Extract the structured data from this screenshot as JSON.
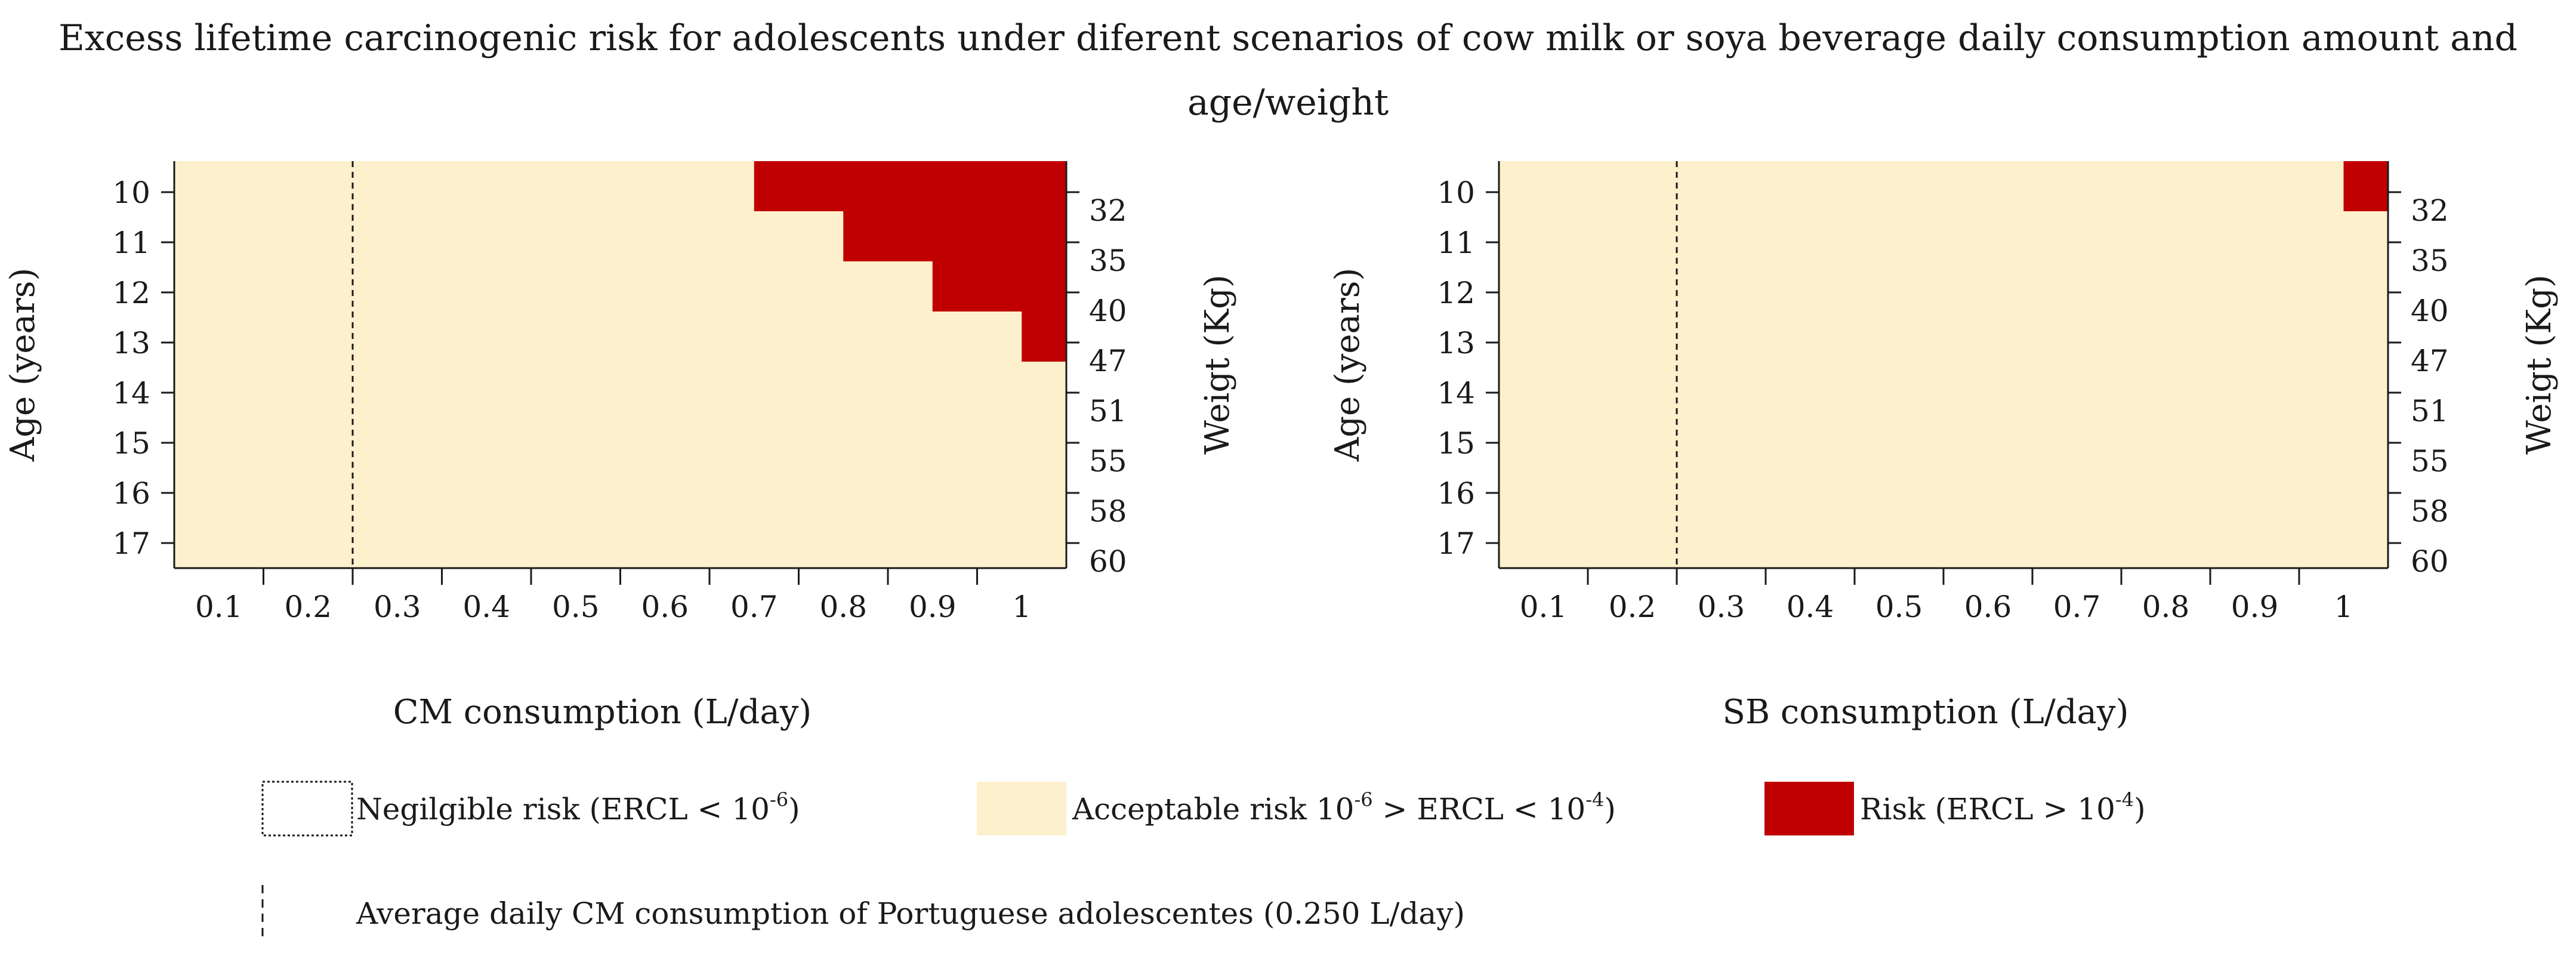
{
  "title": "Excess lifetime carcinogenic risk for adolescents under diferent scenarios of cow milk or soya beverage daily consumption amount and age/weight",
  "colors": {
    "acceptable": "#FDF0CC",
    "risk": "#C00000",
    "axis": "#1a1a1a"
  },
  "chart_data": [
    {
      "type": "heatmap",
      "xlabel": "CM consumption (L/day)",
      "ylabel": "Age (years)",
      "y2label": "Weigt (Kg)",
      "x_ticks": [
        "0.1",
        "0.2",
        "0.3",
        "0.4",
        "0.5",
        "0.6",
        "0.7",
        "0.8",
        "0.9",
        "1"
      ],
      "age_ticks": [
        "10",
        "11",
        "12",
        "13",
        "14",
        "15",
        "16",
        "17"
      ],
      "weight_ticks": [
        "32",
        "35",
        "40",
        "47",
        "51",
        "55",
        "58",
        "60"
      ],
      "reference_line_x": 0.25,
      "risk_cells": [
        {
          "age": 10,
          "x_min": 0.7,
          "x_max": 1.0
        },
        {
          "age": 11,
          "x_min": 0.8,
          "x_max": 1.0
        },
        {
          "age": 12,
          "x_min": 0.9,
          "x_max": 1.0
        },
        {
          "age": 13,
          "x_min": 1.0,
          "x_max": 1.0
        }
      ]
    },
    {
      "type": "heatmap",
      "xlabel": "SB consumption (L/day)",
      "ylabel": "Age (years)",
      "y2label": "Weigt (Kg)",
      "x_ticks": [
        "0.1",
        "0.2",
        "0.3",
        "0.4",
        "0.5",
        "0.6",
        "0.7",
        "0.8",
        "0.9",
        "1"
      ],
      "age_ticks": [
        "10",
        "11",
        "12",
        "13",
        "14",
        "15",
        "16",
        "17"
      ],
      "weight_ticks": [
        "32",
        "35",
        "40",
        "47",
        "51",
        "55",
        "58",
        "60"
      ],
      "reference_line_x": 0.25,
      "risk_cells": [
        {
          "age": 10,
          "x_min": 1.0,
          "x_max": 1.0
        }
      ]
    }
  ],
  "legend": {
    "negligible": {
      "label": "Negilgible risk (ERCL < 10",
      "sup": "-6",
      "suffix": ")"
    },
    "acceptable": {
      "label": "Acceptable risk 10",
      "sup1": "-6",
      "mid": " > ERCL < 10",
      "sup2": "-4",
      "suffix": ")"
    },
    "risk": {
      "label": "Risk (ERCL > 10",
      "sup": "-4",
      "suffix": ")"
    },
    "average_line": {
      "label": "Average daily CM consumption of  Portuguese adolescentes (0.250 L/day)"
    }
  }
}
